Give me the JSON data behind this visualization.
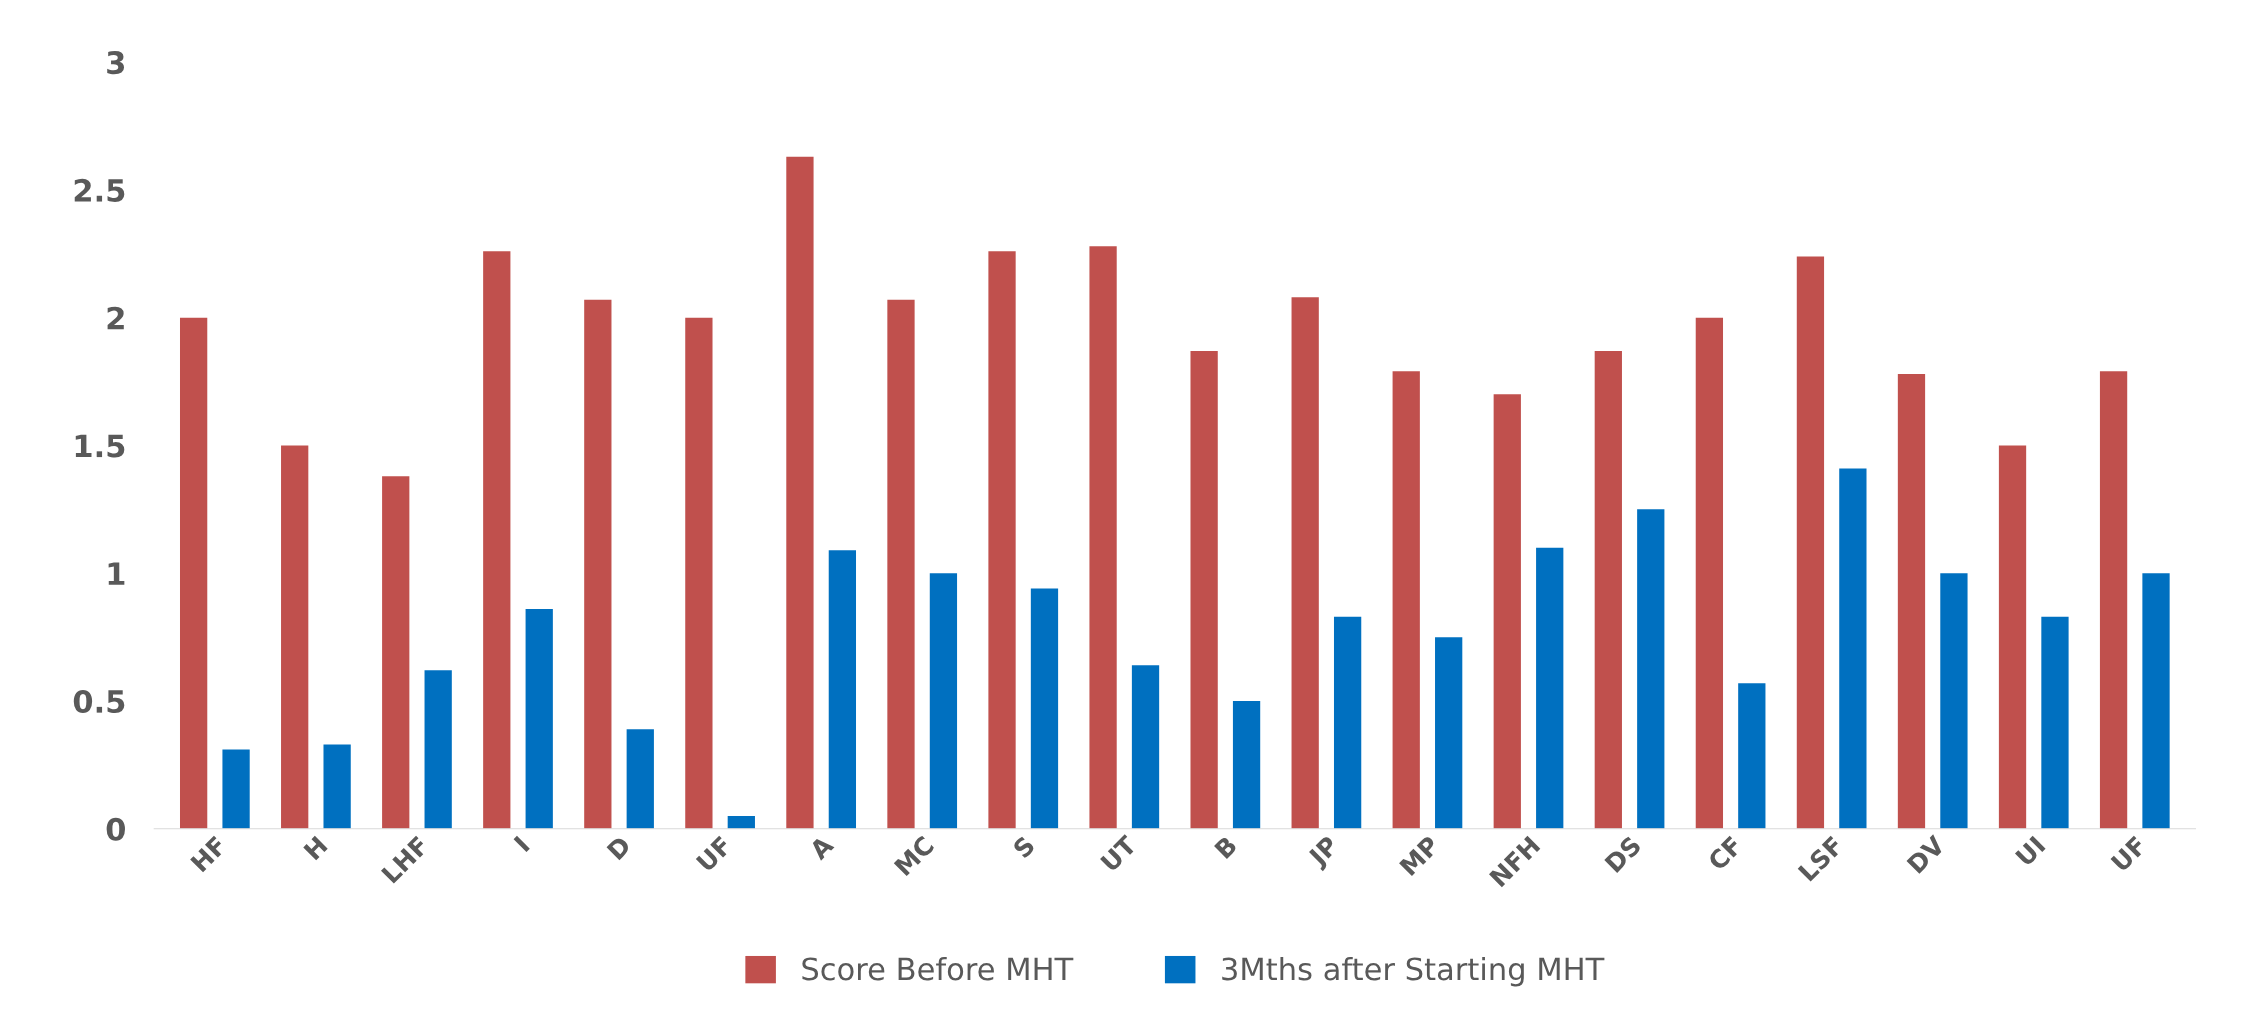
{
  "chart_data": {
    "type": "bar",
    "categories": [
      "HF",
      "H",
      "LHF",
      "I",
      "D",
      "UF",
      "A",
      "MC",
      "S",
      "UT",
      "B",
      "JP",
      "MP",
      "NFH",
      "DS",
      "CF",
      "LSF",
      "DV",
      "UI",
      "UF"
    ],
    "series": [
      {
        "name": "Score Before MHT",
        "color": "#c0504d",
        "values": [
          2.0,
          1.5,
          1.38,
          2.26,
          2.07,
          2.0,
          2.63,
          2.07,
          2.26,
          2.28,
          1.87,
          2.08,
          1.79,
          1.7,
          1.87,
          2.0,
          2.24,
          1.78,
          1.5,
          1.79
        ]
      },
      {
        "name": "3Mths after Starting MHT",
        "color": "#0070c0",
        "values": [
          0.31,
          0.33,
          0.62,
          0.86,
          0.39,
          0.05,
          1.09,
          1.0,
          0.94,
          0.64,
          0.5,
          0.83,
          0.75,
          1.1,
          1.25,
          0.57,
          1.41,
          1.0,
          0.83,
          1.0
        ]
      }
    ],
    "ylim": [
      0,
      3
    ],
    "yticks": [
      0,
      0.5,
      1,
      1.5,
      2,
      2.5,
      3
    ],
    "grid": false,
    "legend": "bottom"
  }
}
